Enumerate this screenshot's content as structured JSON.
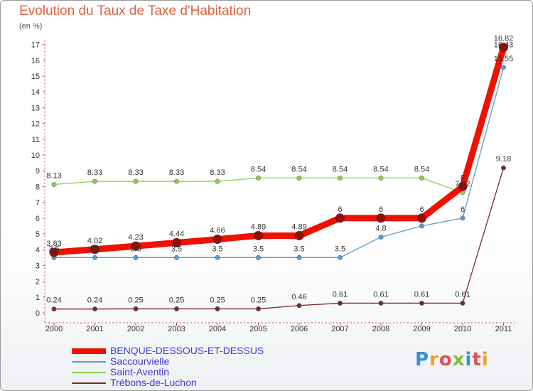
{
  "title": "Evolution du Taux de Taxe d'Habitation",
  "unit_label": "(en %)",
  "logo_text": "Proxiti",
  "chart_data": {
    "type": "line",
    "title": "Evolution du Taux de Taxe d'Habitation",
    "ylabel": "(en %)",
    "xlabel": "",
    "x": [
      "2000",
      "2001",
      "2002",
      "2003",
      "2004",
      "2005",
      "2006",
      "2007",
      "2008",
      "2009",
      "2010",
      "2011"
    ],
    "ylim": [
      0,
      17
    ],
    "yticks": [
      0,
      1,
      2,
      3,
      4,
      5,
      6,
      7,
      8,
      9,
      10,
      11,
      12,
      13,
      14,
      15,
      16,
      17
    ],
    "grid": false,
    "legend_position": "bottom-left",
    "series": [
      {
        "name": "BENQUE-DESSOUS-ET-DESSUS",
        "color": "#ee1100",
        "values": [
          3.83,
          4.02,
          4.23,
          4.44,
          4.66,
          4.89,
          4.89,
          6,
          6,
          6,
          8,
          16.82
        ],
        "labels": [
          "3.83",
          "4.02",
          "4.23",
          "4.44",
          "4.66",
          "4.89",
          "4.89",
          "6",
          "6",
          "6",
          "8",
          "16.82"
        ]
      },
      {
        "name": "Saccourvielle",
        "color": "#5b9bd0",
        "values": [
          3.5,
          3.5,
          3.5,
          3.5,
          3.5,
          3.5,
          3.5,
          3.5,
          4.8,
          5.5,
          6,
          15.55
        ],
        "labels": [
          "3.5",
          "3.5",
          "3.5",
          "3.5",
          "3.5",
          "3.5",
          "3.5",
          "3.5",
          "4.8",
          "",
          "6",
          "15.55"
        ]
      },
      {
        "name": "Saint-Aventin",
        "color": "#88d050",
        "values": [
          8.13,
          8.33,
          8.33,
          8.33,
          8.33,
          8.54,
          8.54,
          8.54,
          8.54,
          8.54,
          7.62,
          16.43
        ],
        "labels": [
          "8.13",
          "8.33",
          "8.33",
          "8.33",
          "8.33",
          "8.54",
          "8.54",
          "8.54",
          "8.54",
          "8.54",
          "7.62",
          "16.43"
        ]
      },
      {
        "name": "Trébons-de-Luchon",
        "color": "#7a2a2a",
        "values": [
          0.24,
          0.24,
          0.25,
          0.25,
          0.25,
          0.25,
          0.46,
          0.61,
          0.61,
          0.61,
          0.61,
          9.18
        ],
        "labels": [
          "0.24",
          "0.24",
          "0.25",
          "0.25",
          "0.25",
          "0.25",
          "0.46",
          "0.61",
          "0.61",
          "0.61",
          "0.61",
          "9.18"
        ]
      }
    ]
  }
}
